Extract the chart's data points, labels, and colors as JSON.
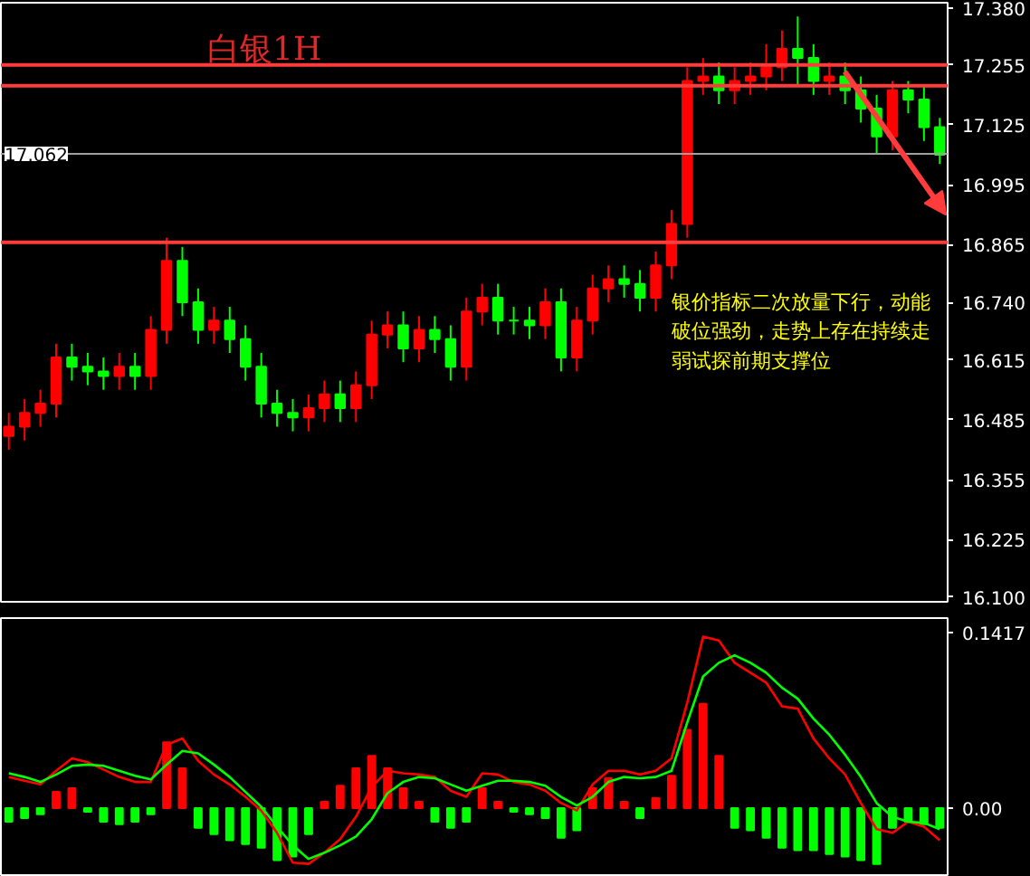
{
  "chart_data": [
    {
      "type": "candlestick",
      "title": "白银1H",
      "tick_labels": "y",
      "grid": false,
      "categories": [
        null,
        null,
        null,
        null,
        null,
        null,
        null,
        null,
        null,
        null,
        null,
        null,
        null,
        null,
        null,
        null,
        null,
        null,
        null,
        null,
        null,
        null,
        null,
        null,
        null,
        null,
        null,
        null,
        null,
        null,
        null,
        null,
        null,
        null,
        null,
        null,
        null,
        null,
        null,
        null,
        null,
        null,
        null,
        null,
        null,
        null,
        null,
        null,
        null,
        null,
        null,
        null,
        null,
        null,
        null,
        null,
        null,
        null,
        null,
        null
      ],
      "ohlc": [
        [
          16.45,
          16.5,
          16.42,
          16.47
        ],
        [
          16.47,
          16.53,
          16.44,
          16.5
        ],
        [
          16.5,
          16.55,
          16.47,
          16.52
        ],
        [
          16.52,
          16.65,
          16.49,
          16.62
        ],
        [
          16.62,
          16.65,
          16.57,
          16.6
        ],
        [
          16.6,
          16.63,
          16.56,
          16.59
        ],
        [
          16.59,
          16.62,
          16.55,
          16.58
        ],
        [
          16.58,
          16.63,
          16.55,
          16.6
        ],
        [
          16.6,
          16.63,
          16.55,
          16.58
        ],
        [
          16.58,
          16.71,
          16.55,
          16.68
        ],
        [
          16.68,
          16.88,
          16.65,
          16.83
        ],
        [
          16.83,
          16.86,
          16.71,
          16.74
        ],
        [
          16.74,
          16.77,
          16.65,
          16.68
        ],
        [
          16.68,
          16.73,
          16.65,
          16.7
        ],
        [
          16.7,
          16.73,
          16.63,
          16.66
        ],
        [
          16.66,
          16.69,
          16.57,
          16.6
        ],
        [
          16.6,
          16.63,
          16.49,
          16.52
        ],
        [
          16.52,
          16.55,
          16.47,
          16.5
        ],
        [
          16.5,
          16.53,
          16.46,
          16.49
        ],
        [
          16.49,
          16.54,
          16.46,
          16.51
        ],
        [
          16.51,
          16.57,
          16.48,
          16.54
        ],
        [
          16.54,
          16.57,
          16.48,
          16.51
        ],
        [
          16.51,
          16.59,
          16.48,
          16.56
        ],
        [
          16.56,
          16.7,
          16.53,
          16.67
        ],
        [
          16.67,
          16.72,
          16.64,
          16.69
        ],
        [
          16.69,
          16.72,
          16.61,
          16.64
        ],
        [
          16.64,
          16.71,
          16.61,
          16.68
        ],
        [
          16.68,
          16.71,
          16.63,
          16.66
        ],
        [
          16.66,
          16.69,
          16.57,
          16.6
        ],
        [
          16.6,
          16.75,
          16.57,
          16.72
        ],
        [
          16.72,
          16.78,
          16.69,
          16.75
        ],
        [
          16.75,
          16.78,
          16.67,
          16.7
        ],
        [
          16.7,
          16.73,
          16.67,
          16.7
        ],
        [
          16.7,
          16.73,
          16.66,
          16.69
        ],
        [
          16.69,
          16.77,
          16.66,
          16.74
        ],
        [
          16.74,
          16.77,
          16.59,
          16.62
        ],
        [
          16.62,
          16.73,
          16.59,
          16.7
        ],
        [
          16.7,
          16.8,
          16.67,
          16.77
        ],
        [
          16.77,
          16.82,
          16.74,
          16.79
        ],
        [
          16.79,
          16.82,
          16.75,
          16.78
        ],
        [
          16.78,
          16.81,
          16.72,
          16.75
        ],
        [
          16.75,
          16.85,
          16.72,
          16.82
        ],
        [
          16.82,
          16.94,
          16.79,
          16.91
        ],
        [
          16.91,
          17.25,
          16.88,
          17.22
        ],
        [
          17.22,
          17.27,
          17.19,
          17.23
        ],
        [
          17.23,
          17.26,
          17.17,
          17.2
        ],
        [
          17.2,
          17.25,
          17.17,
          17.22
        ],
        [
          17.22,
          17.26,
          17.19,
          17.23
        ],
        [
          17.23,
          17.3,
          17.2,
          17.25
        ],
        [
          17.25,
          17.33,
          17.22,
          17.29
        ],
        [
          17.29,
          17.36,
          17.21,
          17.27
        ],
        [
          17.27,
          17.3,
          17.19,
          17.22
        ],
        [
          17.22,
          17.26,
          17.19,
          17.23
        ],
        [
          17.23,
          17.26,
          17.17,
          17.2
        ],
        [
          17.2,
          17.23,
          17.13,
          17.16
        ],
        [
          17.16,
          17.19,
          17.06,
          17.1
        ],
        [
          17.1,
          17.22,
          17.07,
          17.2
        ],
        [
          17.2,
          17.22,
          17.15,
          17.18
        ],
        [
          17.18,
          17.21,
          17.09,
          17.12
        ],
        [
          17.12,
          17.14,
          17.04,
          17.06
        ]
      ],
      "colors": [
        "#ff0000",
        "#ff0000",
        "#ff0000",
        "#ff0000",
        "#00ff00",
        "#00ff00",
        "#00ff00",
        "#ff0000",
        "#00ff00",
        "#ff0000",
        "#ff0000",
        "#00ff00",
        "#00ff00",
        "#ff0000",
        "#00ff00",
        "#00ff00",
        "#00ff00",
        "#00ff00",
        "#00ff00",
        "#ff0000",
        "#ff0000",
        "#00ff00",
        "#ff0000",
        "#ff0000",
        "#ff0000",
        "#00ff00",
        "#ff0000",
        "#00ff00",
        "#00ff00",
        "#ff0000",
        "#ff0000",
        "#00ff00",
        "#00ff00",
        "#00ff00",
        "#ff0000",
        "#00ff00",
        "#ff0000",
        "#ff0000",
        "#ff0000",
        "#00ff00",
        "#00ff00",
        "#ff0000",
        "#ff0000",
        "#ff0000",
        "#ff0000",
        "#00ff00",
        "#ff0000",
        "#ff0000",
        "#ff0000",
        "#ff0000",
        "#00ff00",
        "#00ff00",
        "#ff0000",
        "#00ff00",
        "#00ff00",
        "#00ff00",
        "#ff0000",
        "#00ff00",
        "#00ff00",
        "#00ff00"
      ],
      "ylim": [
        16.09,
        17.39
      ],
      "yticks": [
        {
          "value": 17.38,
          "label": "17.380"
        },
        17.255,
        17.125,
        16.995,
        16.865,
        {
          "value": 16.74,
          "label": "16.740"
        },
        16.615,
        16.485,
        16.355,
        16.225,
        {
          "value": 16.1,
          "label": "16.100"
        }
      ],
      "ref_lines": [
        {
          "axis": "y",
          "value": 17.255,
          "color": "#ff3b3b"
        },
        {
          "axis": "y",
          "value": 17.21,
          "color": "#ff3b3b"
        },
        {
          "axis": "y",
          "value": 16.87,
          "color": "#ff3b3b"
        },
        {
          "axis": "y",
          "value": 17.062,
          "label": "17.062",
          "color": "#a0a0a0"
        }
      ],
      "annotations": [
        "银价指标二次放量下行，动能破位强劲，走势上存在持续走弱试探前期支撑位"
      ]
    },
    {
      "type": "bar",
      "tick_labels": "y",
      "grid": false,
      "categories": [
        null,
        null,
        null,
        null,
        null,
        null,
        null,
        null,
        null,
        null,
        null,
        null,
        null,
        null,
        null,
        null,
        null,
        null,
        null,
        null,
        null,
        null,
        null,
        null,
        null,
        null,
        null,
        null,
        null,
        null,
        null,
        null,
        null,
        null,
        null,
        null,
        null,
        null,
        null,
        null,
        null,
        null,
        null,
        null,
        null,
        null,
        null,
        null,
        null,
        null,
        null,
        null,
        null,
        null,
        null,
        null,
        null,
        null,
        null,
        null
      ],
      "ylim": [
        -0.054,
        0.153
      ],
      "yticks": [
        {
          "value": 0.1417,
          "label": "0.1417"
        },
        {
          "value": 0,
          "label": "0.00"
        }
      ],
      "series": [
        {
          "type": "bar",
          "values": [
            -0.011,
            -0.008,
            -0.005,
            0.013,
            0.016,
            -0.003,
            -0.011,
            -0.013,
            -0.011,
            -0.005,
            0.053,
            0.032,
            -0.016,
            -0.021,
            -0.026,
            -0.029,
            -0.032,
            -0.042,
            -0.039,
            -0.021,
            0.005,
            0.018,
            0.032,
            0.042,
            0.032,
            0.016,
            0.005,
            -0.011,
            -0.016,
            -0.011,
            0.016,
            0.005,
            -0.003,
            -0.005,
            -0.008,
            -0.024,
            -0.018,
            0.016,
            0.024,
            0.005,
            -0.008,
            0.008,
            0.026,
            0.063,
            0.084,
            0.042,
            -0.016,
            -0.018,
            -0.024,
            -0.032,
            -0.034,
            -0.034,
            -0.037,
            -0.039,
            -0.042,
            -0.045,
            -0.016,
            -0.011,
            -0.013,
            -0.016
          ],
          "colors": [
            "#00ff00",
            "#00ff00",
            "#00ff00",
            "#ff0000",
            "#ff0000",
            "#00ff00",
            "#00ff00",
            "#00ff00",
            "#00ff00",
            "#00ff00",
            "#ff0000",
            "#ff0000",
            "#00ff00",
            "#00ff00",
            "#00ff00",
            "#00ff00",
            "#00ff00",
            "#00ff00",
            "#00ff00",
            "#00ff00",
            "#ff0000",
            "#ff0000",
            "#ff0000",
            "#ff0000",
            "#ff0000",
            "#ff0000",
            "#ff0000",
            "#00ff00",
            "#00ff00",
            "#00ff00",
            "#ff0000",
            "#ff0000",
            "#00ff00",
            "#00ff00",
            "#00ff00",
            "#00ff00",
            "#00ff00",
            "#ff0000",
            "#ff0000",
            "#ff0000",
            "#00ff00",
            "#ff0000",
            "#ff0000",
            "#ff0000",
            "#ff0000",
            "#ff0000",
            "#00ff00",
            "#00ff00",
            "#00ff00",
            "#00ff00",
            "#00ff00",
            "#00ff00",
            "#00ff00",
            "#00ff00",
            "#00ff00",
            "#00ff00",
            "#00ff00",
            "#00ff00",
            "#00ff00",
            "#00ff00"
          ]
        },
        {
          "type": "line",
          "color": "#ff0000",
          "values": [
            0.025,
            0.022,
            0.019,
            0.03,
            0.04,
            0.037,
            0.031,
            0.025,
            0.021,
            0.021,
            0.051,
            0.056,
            0.038,
            0.027,
            0.019,
            0.009,
            -0.002,
            -0.02,
            -0.044,
            -0.045,
            -0.036,
            -0.025,
            -0.007,
            0.017,
            0.03,
            0.028,
            0.027,
            0.025,
            0.014,
            0.009,
            0.028,
            0.027,
            0.021,
            0.019,
            0.014,
            0.004,
            -0.002,
            0.019,
            0.03,
            0.03,
            0.027,
            0.03,
            0.04,
            0.085,
            0.138,
            0.135,
            0.117,
            0.109,
            0.101,
            0.082,
            0.08,
            0.056,
            0.04,
            0.027,
            0.004,
            -0.017,
            -0.02,
            -0.011,
            -0.015,
            -0.026
          ]
        },
        {
          "type": "line",
          "color": "#00ff00",
          "values": [
            0.028,
            0.025,
            0.021,
            0.027,
            0.034,
            0.035,
            0.034,
            0.03,
            0.026,
            0.023,
            0.035,
            0.046,
            0.044,
            0.035,
            0.025,
            0.013,
            0.001,
            -0.015,
            -0.03,
            -0.041,
            -0.036,
            -0.03,
            -0.023,
            -0.009,
            0.012,
            0.021,
            0.025,
            0.024,
            0.019,
            0.014,
            0.018,
            0.022,
            0.022,
            0.021,
            0.018,
            0.009,
            0.002,
            0.009,
            0.021,
            0.025,
            0.024,
            0.025,
            0.03,
            0.069,
            0.106,
            0.117,
            0.123,
            0.117,
            0.109,
            0.097,
            0.088,
            0.072,
            0.059,
            0.043,
            0.025,
            0.004,
            -0.007,
            -0.011,
            -0.012,
            -0.017
          ]
        }
      ]
    }
  ]
}
